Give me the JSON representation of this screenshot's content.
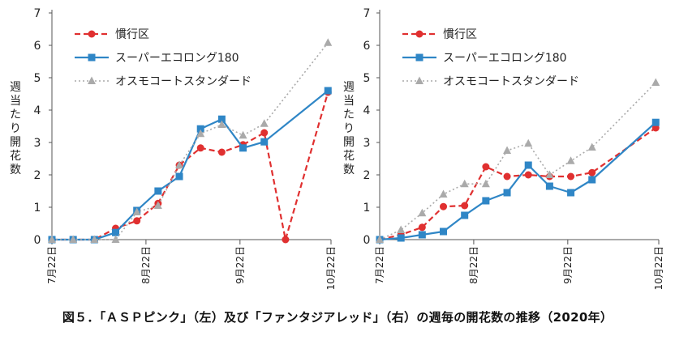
{
  "caption": "図５．「ＡＳＰピンク」（左）及び「ファンタジアレッド」（右）の週毎の開花数の推移（2020年）",
  "colors": {
    "series1": "#e03030",
    "series2": "#2f86c6",
    "series3": "#aaaaaa"
  },
  "chart_data": [
    {
      "type": "line",
      "panel": "left",
      "ylabel": "週当たり開花数",
      "xlabel": "",
      "ylim": [
        0,
        7
      ],
      "yticks": [
        "0",
        "1",
        "2",
        "3",
        "4",
        "5",
        "6",
        "7"
      ],
      "xlim": [
        "2020-07-22",
        "2020-10-22"
      ],
      "xticks": [
        {
          "date": "2020-07-22",
          "label": "7月22日"
        },
        {
          "date": "2020-08-22",
          "label": "8月22日"
        },
        {
          "date": "2020-09-22",
          "label": "9月22日"
        },
        {
          "date": "2020-10-22",
          "label": "10月22日"
        }
      ],
      "grid": false,
      "legend": "top-left",
      "series": [
        {
          "name": "慣行区",
          "style": "dashed",
          "marker": "circle",
          "x": [
            "2020-07-22",
            "2020-07-29",
            "2020-08-05",
            "2020-08-12",
            "2020-08-19",
            "2020-08-26",
            "2020-09-02",
            "2020-09-09",
            "2020-09-16",
            "2020-09-23",
            "2020-09-30",
            "2020-10-07",
            "2020-10-21"
          ],
          "values": [
            0,
            0,
            0,
            0.35,
            0.58,
            1.12,
            2.3,
            2.83,
            2.7,
            2.93,
            3.3,
            0,
            4.55
          ]
        },
        {
          "name": "スーパーエコロング180",
          "style": "solid",
          "marker": "square",
          "x": [
            "2020-07-22",
            "2020-07-29",
            "2020-08-05",
            "2020-08-12",
            "2020-08-19",
            "2020-08-26",
            "2020-09-02",
            "2020-09-09",
            "2020-09-16",
            "2020-09-23",
            "2020-09-30",
            "2020-10-21"
          ],
          "values": [
            0,
            0,
            0,
            0.22,
            0.9,
            1.5,
            1.95,
            3.42,
            3.72,
            2.83,
            3.02,
            4.6
          ]
        },
        {
          "name": "オスモコートスタンダード",
          "style": "dotted",
          "marker": "triangle",
          "x": [
            "2020-07-22",
            "2020-07-29",
            "2020-08-05",
            "2020-08-12",
            "2020-08-19",
            "2020-08-26",
            "2020-09-02",
            "2020-09-09",
            "2020-09-16",
            "2020-09-23",
            "2020-09-30",
            "2020-10-21"
          ],
          "values": [
            0,
            0,
            0,
            0,
            0.85,
            1.05,
            2.3,
            3.27,
            3.55,
            3.22,
            3.58,
            6.08
          ]
        }
      ]
    },
    {
      "type": "line",
      "panel": "right",
      "ylabel": "週当たり開花数",
      "xlabel": "",
      "ylim": [
        0,
        7
      ],
      "yticks": [
        "0",
        "1",
        "2",
        "3",
        "4",
        "5",
        "6",
        "7"
      ],
      "xlim": [
        "2020-07-22",
        "2020-10-22"
      ],
      "xticks": [
        {
          "date": "2020-07-22",
          "label": "7月22日"
        },
        {
          "date": "2020-08-22",
          "label": "8月22日"
        },
        {
          "date": "2020-09-22",
          "label": "9月22日"
        },
        {
          "date": "2020-10-22",
          "label": "10月22日"
        }
      ],
      "grid": false,
      "legend": "top-left",
      "series": [
        {
          "name": "慣行区",
          "style": "dashed",
          "marker": "circle",
          "x": [
            "2020-07-22",
            "2020-07-29",
            "2020-08-05",
            "2020-08-12",
            "2020-08-19",
            "2020-08-26",
            "2020-09-02",
            "2020-09-09",
            "2020-09-16",
            "2020-09-23",
            "2020-09-30",
            "2020-10-21"
          ],
          "values": [
            0,
            0.15,
            0.38,
            1.02,
            1.05,
            2.25,
            1.95,
            2.0,
            1.95,
            1.95,
            2.07,
            3.45
          ]
        },
        {
          "name": "スーパーエコロング180",
          "style": "solid",
          "marker": "square",
          "x": [
            "2020-07-22",
            "2020-07-29",
            "2020-08-05",
            "2020-08-12",
            "2020-08-19",
            "2020-08-26",
            "2020-09-02",
            "2020-09-09",
            "2020-09-16",
            "2020-09-23",
            "2020-09-30",
            "2020-10-21"
          ],
          "values": [
            0,
            0.05,
            0.15,
            0.25,
            0.75,
            1.2,
            1.45,
            2.3,
            1.65,
            1.45,
            1.85,
            3.62
          ]
        },
        {
          "name": "オスモコートスタンダード",
          "style": "dotted",
          "marker": "triangle",
          "x": [
            "2020-07-22",
            "2020-07-29",
            "2020-08-05",
            "2020-08-12",
            "2020-08-19",
            "2020-08-26",
            "2020-09-02",
            "2020-09-09",
            "2020-09-16",
            "2020-09-23",
            "2020-09-30",
            "2020-10-21"
          ],
          "values": [
            0,
            0.3,
            0.82,
            1.4,
            1.72,
            1.72,
            2.75,
            2.97,
            2.0,
            2.43,
            2.85,
            4.85
          ]
        }
      ]
    }
  ]
}
